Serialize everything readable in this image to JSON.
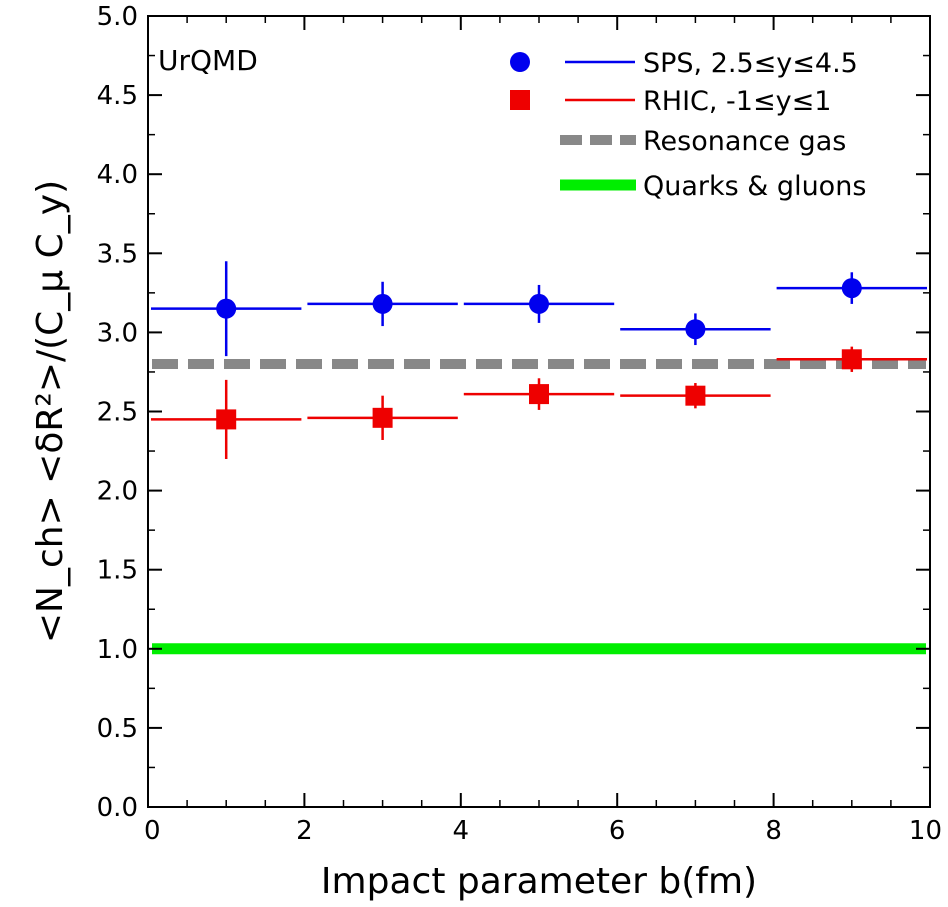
{
  "chart_data": {
    "type": "scatter",
    "title": "",
    "annotation": "UrQMD",
    "xlabel": "Impact parameter b(fm)",
    "ylabel": "<N_ch> <δR²>/(C_μ C_y)",
    "xlim": [
      0,
      10
    ],
    "ylim": [
      0.0,
      5.0
    ],
    "x_ticks": [
      "0",
      "2",
      "4",
      "6",
      "8",
      "10"
    ],
    "y_ticks": [
      "0.0",
      "0.5",
      "1.0",
      "1.5",
      "2.0",
      "2.5",
      "3.0",
      "3.5",
      "4.0",
      "4.5",
      "5.0"
    ],
    "grid": false,
    "legend_position": "top-right",
    "series": [
      {
        "name": "SPS, 2.5≤y≤4.5",
        "color": "#0000ee",
        "marker": "circle",
        "points": [
          {
            "x": 1,
            "y": 3.15,
            "xerr": 1,
            "yerr": 0.3
          },
          {
            "x": 3,
            "y": 3.18,
            "xerr": 1,
            "yerr": 0.14
          },
          {
            "x": 5,
            "y": 3.18,
            "xerr": 1,
            "yerr": 0.12
          },
          {
            "x": 7,
            "y": 3.02,
            "xerr": 1,
            "yerr": 0.1
          },
          {
            "x": 9,
            "y": 3.28,
            "xerr": 1,
            "yerr": 0.1
          }
        ]
      },
      {
        "name": "RHIC, -1≤y≤1",
        "color": "#ee0000",
        "marker": "square",
        "points": [
          {
            "x": 1,
            "y": 2.45,
            "xerr": 1,
            "yerr": 0.25
          },
          {
            "x": 3,
            "y": 2.46,
            "xerr": 1,
            "yerr": 0.14
          },
          {
            "x": 5,
            "y": 2.61,
            "xerr": 1,
            "yerr": 0.1
          },
          {
            "x": 7,
            "y": 2.6,
            "xerr": 1,
            "yerr": 0.08
          },
          {
            "x": 9,
            "y": 2.83,
            "xerr": 1,
            "yerr": 0.08
          }
        ]
      }
    ],
    "reference_lines": [
      {
        "name": "Resonance gas",
        "y": 2.8,
        "color": "#888888",
        "style": "dashed"
      },
      {
        "name": "Quarks & gluons",
        "y": 1.0,
        "color": "#00ee00",
        "style": "solid"
      }
    ]
  }
}
